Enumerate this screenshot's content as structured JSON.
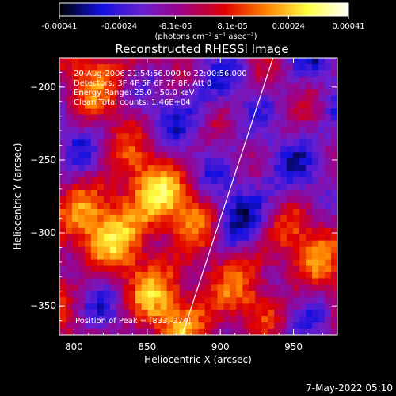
{
  "chart_data": {
    "type": "heatmap",
    "title": "Reconstructed RHESSI Image",
    "xlabel": "Heliocentric X (arcsec)",
    "ylabel": "Heliocentric Y (arcsec)",
    "xlim": [
      790,
      980
    ],
    "ylim": [
      -370,
      -180
    ],
    "x_ticks": [
      800,
      850,
      900,
      950
    ],
    "y_ticks": [
      -350,
      -300,
      -250,
      -200
    ],
    "colorbar": {
      "min": -0.00041,
      "max": 0.00041,
      "tick_values": [
        -0.00041,
        -0.00024,
        -8.1e-05,
        8.1e-05,
        0.00024,
        0.00041
      ],
      "tick_labels": [
        "-0.00041",
        "-0.00024",
        "-8.1e-05",
        "8.1e-05",
        "0.00024",
        "0.00041"
      ],
      "unit_label": "(photons cm⁻² s⁻¹ asec⁻²)",
      "colormap": [
        "#000000",
        "#1010e0",
        "#6a1fd0",
        "#a00080",
        "#e00000",
        "#ff8000",
        "#ffff40",
        "#ffffff"
      ]
    },
    "annotations": [
      "20-Aug-2006 21:54:56.000 to 22:00:56.000",
      "Detectors: 3F 4F 5F 6F 7F 8F, Att 0",
      "Energy Range: 25.0 - 50.0 keV",
      "Clean    Total counts: 1.46E+04"
    ],
    "peak_label": "Position of Peak = [833,-274]",
    "limb_line": [
      [
        874,
        -370
      ],
      [
        936,
        -180
      ]
    ],
    "grid": false,
    "legend": "none"
  },
  "footer": {
    "timestamp": "7-May-2022 05:10"
  }
}
